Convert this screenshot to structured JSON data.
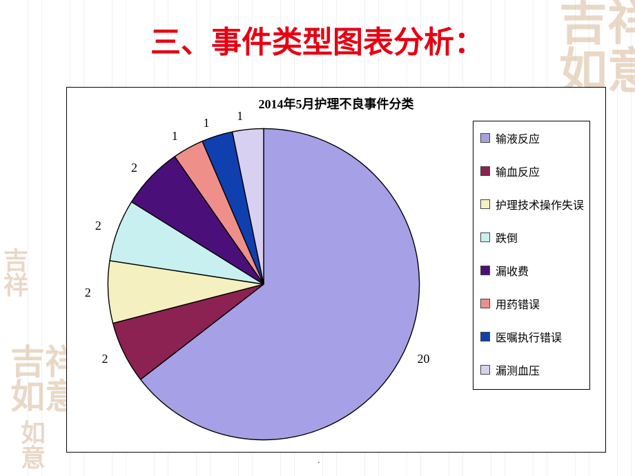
{
  "page_title": {
    "text": "三、事件类型图表分析：",
    "color": "#e60012",
    "font_size": 44,
    "font_weight": 700
  },
  "background": {
    "seal_text": "吉祥如意",
    "seal_color": "#d9b99a",
    "grid_color": "#eef0f2",
    "bg_color": "#ffffff"
  },
  "chart": {
    "type": "pie",
    "title": "2014年5月护理不良事件分类",
    "title_fontsize": 18,
    "title_color": "#000000",
    "box_border": "#000000",
    "start_angle_deg": 90,
    "direction": "clockwise",
    "label_fontsize": 18,
    "legend_fontsize": 16,
    "legend_border": "#000000",
    "slices": [
      {
        "label": "输液反应",
        "value": 20,
        "color": "#a6a0e6"
      },
      {
        "label": "输血反应",
        "value": 2,
        "color": "#8b2252"
      },
      {
        "label": "护理技术操作失误",
        "value": 2,
        "color": "#f5f0c0"
      },
      {
        "label": "跌倒",
        "value": 2,
        "color": "#c8f0f0"
      },
      {
        "label": "漏收费",
        "value": 2,
        "color": "#4b0f7a"
      },
      {
        "label": "用药错误",
        "value": 1,
        "color": "#ef8f8a"
      },
      {
        "label": "医嘱执行错误",
        "value": 1,
        "color": "#1040b0"
      },
      {
        "label": "漏测血压",
        "value": 1,
        "color": "#d8d0f0"
      }
    ]
  }
}
